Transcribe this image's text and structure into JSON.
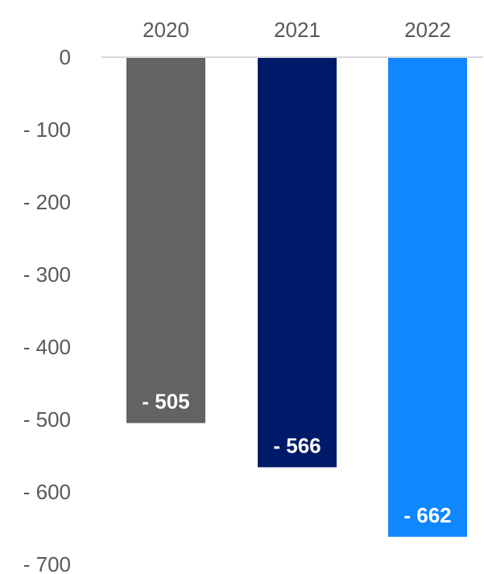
{
  "chart_data": {
    "type": "bar",
    "categories": [
      "2020",
      "2021",
      "2022"
    ],
    "values": [
      -505,
      -566,
      -662
    ],
    "value_labels": [
      "- 505",
      "- 566",
      "- 662"
    ],
    "colors": [
      "#636363",
      "#001A6A",
      "#0F87FF"
    ],
    "y_ticks": [
      {
        "value": 0,
        "label": "0"
      },
      {
        "value": -100,
        "label": "- 100"
      },
      {
        "value": -200,
        "label": "- 200"
      },
      {
        "value": -300,
        "label": "- 300"
      },
      {
        "value": -400,
        "label": "- 400"
      },
      {
        "value": -500,
        "label": "- 500"
      },
      {
        "value": -600,
        "label": "- 600"
      },
      {
        "value": -700,
        "label": "- 700"
      }
    ],
    "ylim": [
      -700,
      0
    ],
    "title": "",
    "xlabel": "",
    "ylabel": "",
    "category_axis_position": "top",
    "grid": false,
    "legend": "none",
    "axis_line_color": "#D9D9D9"
  }
}
